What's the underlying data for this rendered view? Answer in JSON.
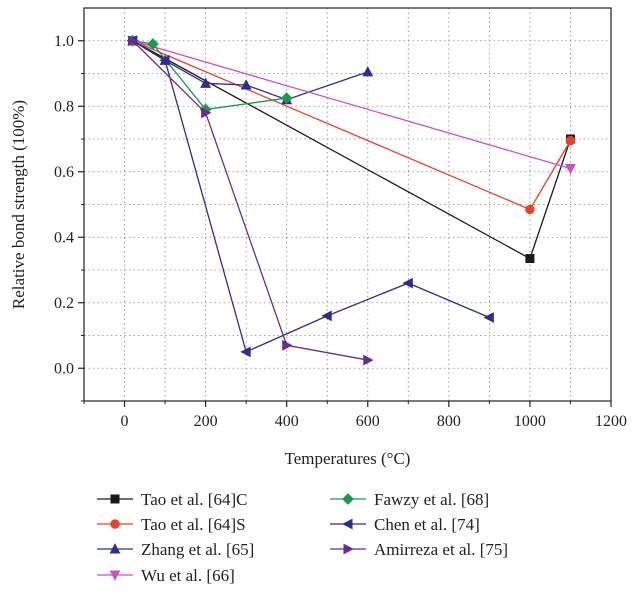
{
  "chart_data": {
    "type": "line",
    "title": "",
    "xlabel": "Temperatures (°C)",
    "ylabel": "Relative bond strength (100%)",
    "xlim": [
      -100,
      1200
    ],
    "ylim": [
      -0.1,
      1.1
    ],
    "xticks": [
      0,
      200,
      400,
      600,
      800,
      1000,
      1200
    ],
    "yticks": [
      0.0,
      0.2,
      0.4,
      0.6,
      0.8,
      1.0
    ],
    "xtick_labels": [
      "0",
      "200",
      "400",
      "600",
      "800",
      "1000",
      "1200"
    ],
    "ytick_labels": [
      "0.0",
      "0.2",
      "0.4",
      "0.6",
      "0.8",
      "1.0"
    ],
    "grid": true,
    "legend_position": "bottom",
    "series": [
      {
        "name": "Tao et al. [64]C",
        "color": "#1a1a1a",
        "marker": "square",
        "x": [
          20,
          1000,
          1100
        ],
        "y": [
          1.0,
          0.335,
          0.7
        ]
      },
      {
        "name": "Tao et al. [64]S",
        "color": "#e8412c",
        "marker": "circle",
        "x": [
          20,
          1000,
          1100
        ],
        "y": [
          1.0,
          0.485,
          0.695
        ]
      },
      {
        "name": "Zhang et al. [65]",
        "color": "#2e2e8f",
        "marker": "triangle-up",
        "x": [
          20,
          100,
          200,
          300,
          400,
          600
        ],
        "y": [
          1.0,
          0.94,
          0.87,
          0.865,
          0.82,
          0.905
        ]
      },
      {
        "name": "Wu et al. [66]",
        "color": "#cc4fc4",
        "marker": "triangle-down",
        "x": [
          20,
          1100
        ],
        "y": [
          1.0,
          0.61
        ]
      },
      {
        "name": "Fawzy et al. [68]",
        "color": "#1a9a4a",
        "marker": "diamond",
        "x": [
          20,
          70,
          200,
          400
        ],
        "y": [
          1.0,
          0.99,
          0.79,
          0.825
        ]
      },
      {
        "name": "Chen et al. [74]",
        "color": "#2e2e8f",
        "marker": "triangle-left",
        "x": [
          20,
          100,
          300,
          500,
          700,
          900
        ],
        "y": [
          1.0,
          0.94,
          0.05,
          0.16,
          0.26,
          0.155
        ]
      },
      {
        "name": "Amirreza et al. [75]",
        "color": "#6a2a8f",
        "marker": "triangle-right",
        "x": [
          20,
          200,
          400,
          600
        ],
        "y": [
          1.0,
          0.78,
          0.07,
          0.025
        ]
      }
    ]
  }
}
